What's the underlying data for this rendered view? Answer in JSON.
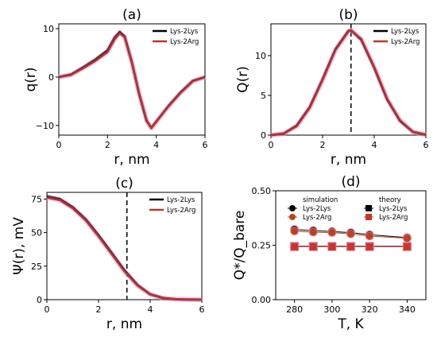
{
  "colors": {
    "lys2lys": "#000000",
    "lys2arg": "#b03a2e",
    "sim_lys2lys": "#000000",
    "sim_lys2arg": "#b5451b",
    "theory_lys2lys": "#000000",
    "theory_lys2arg": "#c0392b",
    "glow": "#f08ac8",
    "line_lys2lys_d": "#000000",
    "line_lys2arg_d": "#d0412a"
  },
  "chart_data": [
    {
      "id": "a",
      "type": "line",
      "title": "(a)",
      "xlabel": "r, nm",
      "ylabel": "q(r)",
      "xlim": [
        0,
        6
      ],
      "ylim": [
        -12,
        11
      ],
      "xticks": [
        0,
        2,
        4,
        6
      ],
      "yticks": [
        -10,
        0,
        10
      ],
      "legend": "top-right",
      "series": [
        {
          "name": "Lys-2Lys",
          "x": [
            0,
            0.5,
            1.0,
            1.5,
            2.0,
            2.3,
            2.5,
            2.7,
            3.0,
            3.3,
            3.6,
            3.8,
            4.0,
            4.5,
            5.0,
            5.5,
            6.0
          ],
          "y": [
            0,
            0.5,
            2.0,
            3.6,
            5.5,
            8.2,
            9.3,
            8.4,
            3.0,
            -3.5,
            -9.0,
            -10.5,
            -9.2,
            -6.0,
            -3.2,
            -0.8,
            0
          ]
        },
        {
          "name": "Lys-2Arg",
          "x": [
            0,
            0.5,
            1.0,
            1.5,
            2.0,
            2.3,
            2.5,
            2.7,
            3.0,
            3.3,
            3.6,
            3.8,
            4.0,
            4.5,
            5.0,
            5.5,
            6.0
          ],
          "y": [
            0,
            0.4,
            1.8,
            3.3,
            5.1,
            7.8,
            9.0,
            8.2,
            3.0,
            -3.4,
            -8.8,
            -10.6,
            -9.3,
            -6.1,
            -3.3,
            -0.9,
            0
          ]
        }
      ]
    },
    {
      "id": "b",
      "type": "line",
      "title": "(b)",
      "xlabel": "r, nm",
      "ylabel": "Q(r)",
      "xlim": [
        0,
        6
      ],
      "ylim": [
        0,
        14
      ],
      "xticks": [
        0,
        2,
        4,
        6
      ],
      "yticks": [
        0,
        5,
        10
      ],
      "vline": 3.1,
      "legend": "top-right",
      "series": [
        {
          "name": "Lys-2Lys",
          "x": [
            0,
            0.5,
            1.0,
            1.5,
            2.0,
            2.5,
            3.0,
            3.1,
            3.5,
            4.0,
            4.5,
            5.0,
            5.5,
            6.0
          ],
          "y": [
            0,
            0.2,
            1.2,
            3.5,
            7.0,
            10.8,
            13.1,
            13.2,
            12.0,
            8.5,
            4.5,
            1.8,
            0.4,
            0.05
          ]
        },
        {
          "name": "Lys-2Arg",
          "x": [
            0,
            0.5,
            1.0,
            1.5,
            2.0,
            2.5,
            3.0,
            3.1,
            3.5,
            4.0,
            4.5,
            5.0,
            5.5,
            6.0
          ],
          "y": [
            0,
            0.2,
            1.1,
            3.4,
            6.9,
            10.7,
            13.0,
            13.2,
            12.1,
            8.6,
            4.6,
            1.9,
            0.4,
            0.05
          ]
        }
      ]
    },
    {
      "id": "c",
      "type": "line",
      "title": "(c)",
      "xlabel": "r, nm",
      "ylabel": "Ψ(r), mV",
      "xlim": [
        0,
        6
      ],
      "ylim": [
        0,
        80
      ],
      "xticks": [
        0,
        2,
        4,
        6
      ],
      "yticks": [
        0,
        25,
        50,
        75
      ],
      "vline": 3.1,
      "legend": "top-right",
      "series": [
        {
          "name": "Lys-2Lys",
          "x": [
            0,
            0.5,
            1.0,
            1.5,
            2.0,
            2.5,
            3.0,
            3.5,
            4.0,
            4.5,
            5.0,
            5.5,
            6.0
          ],
          "y": [
            77,
            75,
            69,
            60,
            48,
            35,
            22,
            11,
            4,
            1.2,
            0.3,
            0.05,
            0
          ]
        },
        {
          "name": "Lys-2Arg",
          "x": [
            0,
            0.5,
            1.0,
            1.5,
            2.0,
            2.5,
            3.0,
            3.5,
            4.0,
            4.5,
            5.0,
            5.5,
            6.0
          ],
          "y": [
            76,
            74,
            68,
            59,
            47,
            34,
            21,
            10.5,
            3.8,
            1.1,
            0.3,
            0.05,
            0
          ]
        }
      ]
    },
    {
      "id": "d",
      "type": "scatter",
      "title": "(d)",
      "xlabel": "T, K",
      "ylabel": "Q*/Q_bare",
      "xlim": [
        270,
        350
      ],
      "ylim": [
        0,
        0.5
      ],
      "xticks": [
        280,
        300,
        320,
        340
      ],
      "yticks": [
        0.0,
        0.25,
        0.5
      ],
      "legend": "top",
      "legend_titles": [
        "simulation",
        "theory"
      ],
      "series": [
        {
          "name": "Lys-2Lys",
          "group": "simulation",
          "marker": "circle",
          "x": [
            280,
            290,
            300,
            310,
            320,
            340
          ],
          "y": [
            0.322,
            0.317,
            0.313,
            0.308,
            0.298,
            0.285
          ]
        },
        {
          "name": "Lys-2Arg",
          "group": "simulation",
          "marker": "circle",
          "x": [
            280,
            290,
            300,
            310,
            320,
            340
          ],
          "y": [
            0.315,
            0.31,
            0.308,
            0.302,
            0.292,
            0.282
          ]
        },
        {
          "name": "Lys-2Lys",
          "group": "theory",
          "marker": "square",
          "x": [
            280,
            290,
            300,
            310,
            320,
            340
          ],
          "y": [
            0.245,
            0.245,
            0.245,
            0.245,
            0.245,
            0.245
          ]
        },
        {
          "name": "Lys-2Arg",
          "group": "theory",
          "marker": "square",
          "x": [
            280,
            290,
            300,
            310,
            320,
            340
          ],
          "y": [
            0.243,
            0.243,
            0.243,
            0.243,
            0.243,
            0.243
          ]
        }
      ]
    }
  ]
}
